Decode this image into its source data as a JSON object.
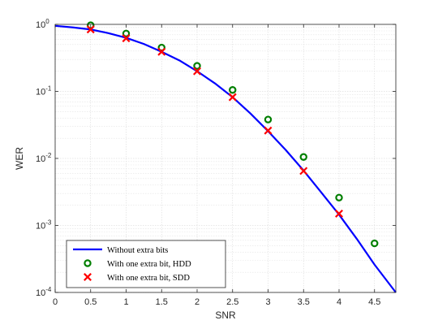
{
  "chart_data": {
    "type": "line",
    "xlabel": "SNR",
    "ylabel": "WER",
    "xlim": [
      0,
      4.8
    ],
    "ylim": [
      0.0001,
      1
    ],
    "yscale": "log",
    "grid": true,
    "legend_position": "bottom-left",
    "x_ticks": [
      {
        "value": 0,
        "label": "0"
      },
      {
        "value": 0.5,
        "label": "0.5"
      },
      {
        "value": 1,
        "label": "1"
      },
      {
        "value": 1.5,
        "label": "1.5"
      },
      {
        "value": 2,
        "label": "2"
      },
      {
        "value": 2.5,
        "label": "2.5"
      },
      {
        "value": 3,
        "label": "3"
      },
      {
        "value": 3.5,
        "label": "3.5"
      },
      {
        "value": 4,
        "label": "4"
      },
      {
        "value": 4.5,
        "label": "4.5"
      }
    ],
    "y_ticks": [
      {
        "value": 1,
        "label": "10",
        "exp": "0"
      },
      {
        "value": 0.1,
        "label": "10",
        "exp": "-1"
      },
      {
        "value": 0.01,
        "label": "10",
        "exp": "-2"
      },
      {
        "value": 0.001,
        "label": "10",
        "exp": "-3"
      },
      {
        "value": 0.0001,
        "label": "10",
        "exp": "-4"
      }
    ],
    "series": [
      {
        "name": "Without extra bits",
        "style": "line",
        "color": "#0000ff",
        "x": [
          0,
          0.25,
          0.5,
          0.75,
          1.0,
          1.25,
          1.5,
          1.75,
          2.0,
          2.25,
          2.5,
          2.75,
          3.0,
          3.25,
          3.5,
          3.75,
          4.0,
          4.25,
          4.5,
          4.8
        ],
        "y": [
          0.95,
          0.9,
          0.84,
          0.74,
          0.63,
          0.51,
          0.39,
          0.29,
          0.2,
          0.132,
          0.082,
          0.047,
          0.0255,
          0.0133,
          0.0066,
          0.0031,
          0.00145,
          0.00063,
          0.00026,
          0.0001
        ]
      },
      {
        "name": "With one extra bit, HDD",
        "style": "marker-circle",
        "color": "#007f00",
        "x": [
          0.5,
          1.0,
          1.5,
          2.0,
          2.5,
          3.0,
          3.5,
          4.0,
          4.5
        ],
        "y": [
          0.97,
          0.73,
          0.45,
          0.24,
          0.105,
          0.038,
          0.0105,
          0.0026,
          0.00054
        ]
      },
      {
        "name": "With one extra bit, SDD",
        "style": "marker-x",
        "color": "#ff0000",
        "x": [
          0.5,
          1.0,
          1.5,
          2.0,
          2.5,
          3.0,
          3.5,
          4.0
        ],
        "y": [
          0.84,
          0.62,
          0.39,
          0.2,
          0.082,
          0.026,
          0.0065,
          0.0015
        ]
      }
    ]
  }
}
